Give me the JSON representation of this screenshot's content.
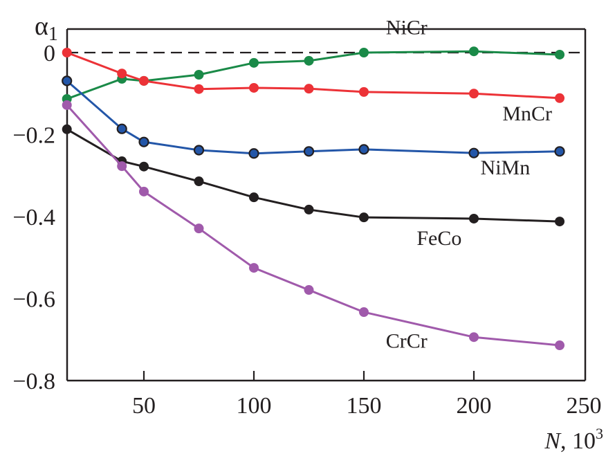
{
  "chart_data": {
    "type": "line",
    "title": "",
    "xlabel_italic": "N",
    "xlabel_rest": ", 10",
    "xlabel_sup": "3",
    "ylabel_main": "α",
    "ylabel_sub": "1",
    "xlim": [
      15,
      250
    ],
    "ylim": [
      -0.8,
      0.05
    ],
    "x_ticks": [
      50,
      100,
      150,
      200,
      250
    ],
    "x_tick_labels": [
      "50",
      "100",
      "150",
      "200",
      "250"
    ],
    "y_ticks": [
      0,
      -0.2,
      -0.4,
      -0.6,
      -0.8
    ],
    "y_tick_labels": [
      "0",
      "−0.2",
      "−0.4",
      "−0.6",
      "−0.8"
    ],
    "reference_line": {
      "y": 0,
      "style": "dashed"
    },
    "grid": false,
    "x": [
      15,
      40,
      50,
      75,
      100,
      125,
      150,
      200,
      239
    ],
    "series": [
      {
        "name": "NiCr",
        "color": "#1a8a48",
        "outlined": false,
        "values": [
          -0.113,
          -0.064,
          -0.069,
          -0.054,
          -0.025,
          -0.02,
          0.0,
          0.003,
          -0.005
        ],
        "label_at": [
          160,
          0.045
        ]
      },
      {
        "name": "MnCr",
        "color": "#ec3237",
        "outlined": false,
        "values": [
          0.0,
          -0.051,
          -0.069,
          -0.089,
          -0.086,
          -0.088,
          -0.096,
          -0.1,
          -0.111
        ],
        "label_at": [
          213,
          -0.165
        ]
      },
      {
        "name": "NiMn",
        "color": "#2356a8",
        "outlined": true,
        "values": [
          -0.069,
          -0.186,
          -0.218,
          -0.238,
          -0.246,
          -0.241,
          -0.236,
          -0.245,
          -0.241
        ],
        "label_at": [
          203,
          -0.297
        ]
      },
      {
        "name": "FeCo",
        "color": "#231f20",
        "outlined": false,
        "values": [
          -0.187,
          -0.265,
          -0.278,
          -0.314,
          -0.353,
          -0.383,
          -0.402,
          -0.405,
          -0.412
        ],
        "label_at": [
          174,
          -0.469
        ]
      },
      {
        "name": "CrCr",
        "color": "#a05aab",
        "outlined": false,
        "values": [
          -0.128,
          -0.277,
          -0.339,
          -0.429,
          -0.525,
          -0.579,
          -0.633,
          -0.694,
          -0.714
        ],
        "label_at": [
          160,
          -0.72
        ]
      }
    ]
  }
}
